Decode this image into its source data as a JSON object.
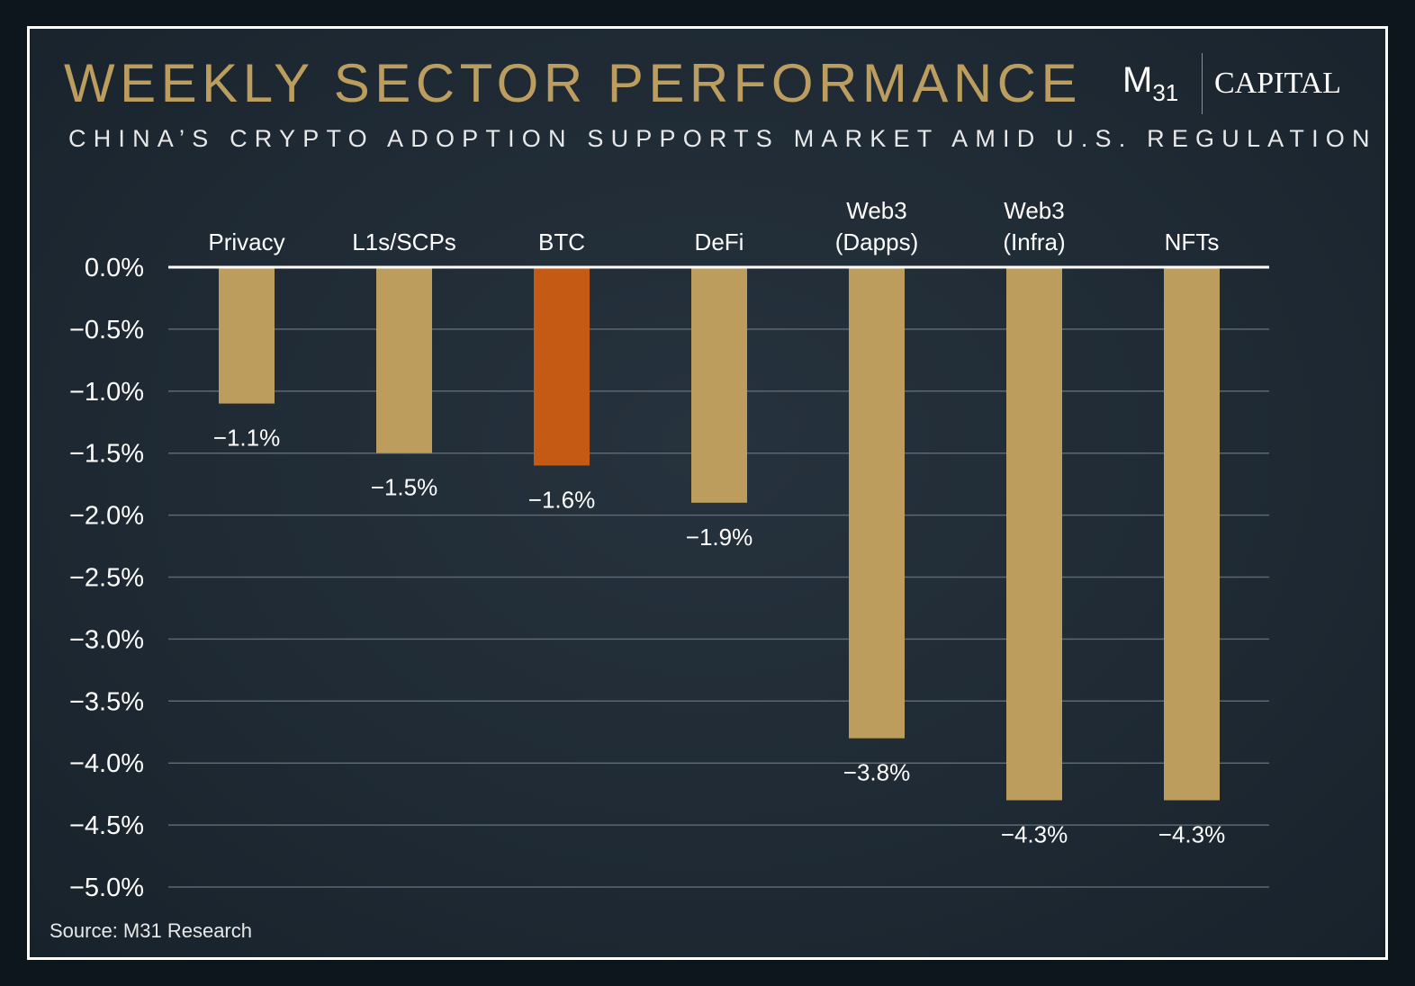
{
  "header": {
    "title": "WEEKLY SECTOR PERFORMANCE",
    "subtitle": "CHINA’S CRYPTO ADOPTION SUPPORTS MARKET AMID U.S. REGULATION"
  },
  "logo": {
    "brand_m": "M",
    "brand_31": "31",
    "brand_word": "CAPITAL"
  },
  "footer": {
    "source": "Source: M31 Research"
  },
  "colors": {
    "bar_default": "#bc9d5e",
    "bar_highlight": "#c45a14",
    "gridline": "#5c6772",
    "zero_line": "#ffffff",
    "text": "#ffffff"
  },
  "chart_data": {
    "type": "bar",
    "categories": [
      [
        "Privacy"
      ],
      [
        "L1s/SCPs"
      ],
      [
        "BTC"
      ],
      [
        "DeFi"
      ],
      [
        "Web3",
        "(Dapps)"
      ],
      [
        "Web3",
        "(Infra)"
      ],
      [
        "NFTs"
      ]
    ],
    "values": [
      -1.1,
      -1.5,
      -1.6,
      -1.9,
      -3.8,
      -4.3,
      -4.3
    ],
    "data_labels": [
      "−1.1%",
      "−1.5%",
      "−1.6%",
      "−1.9%",
      "−3.8%",
      "−4.3%",
      "−4.3%"
    ],
    "highlight_index": 2,
    "ylim": [
      -5.0,
      0.0
    ],
    "yticks": [
      0.0,
      -0.5,
      -1.0,
      -1.5,
      -2.0,
      -2.5,
      -3.0,
      -3.5,
      -4.0,
      -4.5,
      -5.0
    ],
    "ytick_labels": [
      "0.0%",
      "−0.5%",
      "−1.0%",
      "−1.5%",
      "−2.0%",
      "−2.5%",
      "−3.0%",
      "−3.5%",
      "−4.0%",
      "−4.5%",
      "−5.0%"
    ],
    "grid": true,
    "title": "WEEKLY SECTOR PERFORMANCE",
    "xlabel": "",
    "ylabel": ""
  }
}
